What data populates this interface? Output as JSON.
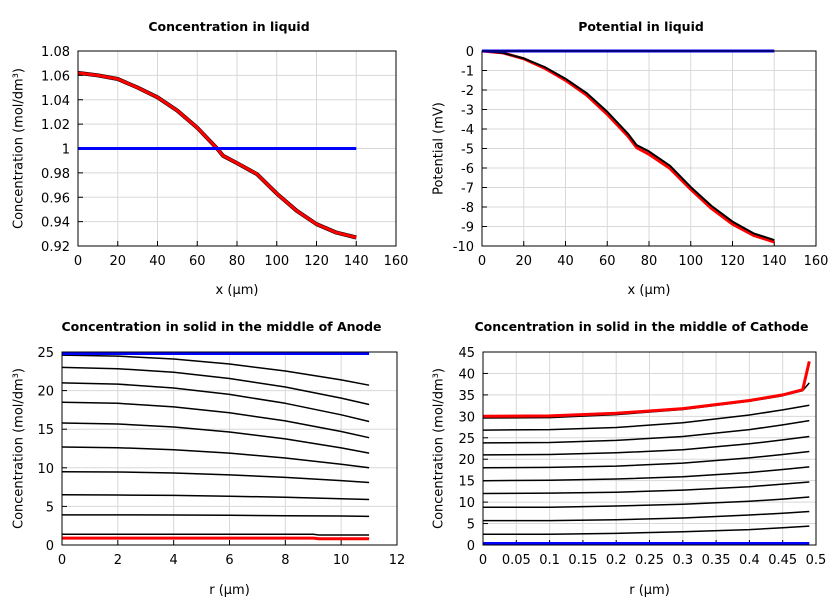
{
  "chart_data": [
    {
      "type": "line",
      "title": "Concentration in liquid",
      "xlabel": "x (µm)",
      "ylabel": "Concentration (mol/dm³)",
      "xlim": [
        0,
        160
      ],
      "ylim": [
        0.92,
        1.08
      ],
      "xticks": [
        0,
        20,
        40,
        60,
        80,
        100,
        120,
        140,
        160
      ],
      "xtick_labels": [
        "0",
        "20",
        "40",
        "60",
        "80",
        "100",
        "120",
        "140",
        "160"
      ],
      "yticks": [
        0.92,
        0.94,
        0.96,
        0.98,
        1,
        1.02,
        1.04,
        1.06,
        1.08
      ],
      "ytick_labels": [
        "0.92",
        "0.94",
        "0.96",
        "0.98",
        "1",
        "1.02",
        "1.04",
        "1.06",
        "1.08"
      ],
      "grid": true,
      "series": [
        {
          "color": "#000000",
          "width": 4,
          "x": [
            0,
            10,
            20,
            30,
            40,
            50,
            60,
            70,
            73,
            80,
            90,
            100,
            110,
            120,
            130,
            140
          ],
          "y": [
            1.062,
            1.06,
            1.057,
            1.05,
            1.042,
            1.031,
            1.017,
            1.0,
            0.994,
            0.988,
            0.979,
            0.963,
            0.949,
            0.938,
            0.931,
            0.927
          ]
        },
        {
          "color": "#ff0000",
          "width": 3,
          "x": [
            0,
            10,
            20,
            30,
            40,
            50,
            60,
            70,
            73,
            80,
            90,
            100,
            110,
            120,
            130,
            140
          ],
          "y": [
            1.062,
            1.06,
            1.057,
            1.05,
            1.042,
            1.031,
            1.017,
            1.0,
            0.994,
            0.988,
            0.979,
            0.963,
            0.949,
            0.938,
            0.931,
            0.927
          ]
        },
        {
          "color": "#0000ff",
          "width": 3,
          "x": [
            0,
            140
          ],
          "y": [
            1,
            1
          ]
        }
      ]
    },
    {
      "type": "line",
      "title": "Potential in liquid",
      "xlabel": "x (µm)",
      "ylabel": "Potential (mV)",
      "xlim": [
        0,
        160
      ],
      "ylim": [
        -10,
        0
      ],
      "xticks": [
        0,
        20,
        40,
        60,
        80,
        100,
        120,
        140,
        160
      ],
      "xtick_labels": [
        "0",
        "20",
        "40",
        "60",
        "80",
        "100",
        "120",
        "140",
        "160"
      ],
      "yticks": [
        -10,
        -9,
        -8,
        -7,
        -6,
        -5,
        -4,
        -3,
        -2,
        -1,
        0
      ],
      "ytick_labels": [
        "-10",
        "-9",
        "-8",
        "-7",
        "-6",
        "-5",
        "-4",
        "-3",
        "-2",
        "-1",
        "0"
      ],
      "grid": true,
      "series": [
        {
          "color": "#ff0000",
          "width": 3,
          "x": [
            0,
            10,
            20,
            30,
            40,
            50,
            60,
            70,
            74,
            80,
            90,
            100,
            110,
            120,
            130,
            140
          ],
          "y": [
            0,
            -0.1,
            -0.4,
            -0.88,
            -1.5,
            -2.25,
            -3.25,
            -4.38,
            -4.95,
            -5.3,
            -6.02,
            -7.1,
            -8.08,
            -8.88,
            -9.45,
            -9.8
          ]
        },
        {
          "color": "#000000",
          "width": 2,
          "x": [
            0,
            10,
            20,
            30,
            40,
            50,
            60,
            70,
            74,
            80,
            90,
            100,
            110,
            120,
            130,
            140
          ],
          "y": [
            0,
            -0.1,
            -0.38,
            -0.82,
            -1.42,
            -2.15,
            -3.12,
            -4.25,
            -4.82,
            -5.15,
            -5.88,
            -6.98,
            -7.95,
            -8.75,
            -9.35,
            -9.7
          ]
        },
        {
          "color": "#0000ff",
          "width": 3,
          "x": [
            0,
            140
          ],
          "y": [
            0,
            0
          ]
        }
      ]
    },
    {
      "type": "line",
      "title": "Concentration in solid in the middle of Anode",
      "xlabel": "r (µm)",
      "ylabel": "Concentration (mol/dm³)",
      "xlim": [
        0,
        12
      ],
      "ylim": [
        0,
        25
      ],
      "xticks": [
        0,
        2,
        4,
        6,
        8,
        10,
        12
      ],
      "xtick_labels": [
        "0",
        "2",
        "4",
        "6",
        "8",
        "10",
        "12"
      ],
      "yticks": [
        0,
        5,
        10,
        15,
        20,
        25
      ],
      "ytick_labels": [
        "0",
        "5",
        "10",
        "15",
        "20",
        "25"
      ],
      "grid": true,
      "series": [
        {
          "color": "#000000",
          "width": 1.5,
          "x": [
            0,
            2,
            4,
            6,
            8,
            10,
            11
          ],
          "y": [
            24.6,
            24.47,
            24.09,
            23.44,
            22.54,
            21.38,
            20.7
          ]
        },
        {
          "color": "#000000",
          "width": 1.5,
          "x": [
            0,
            2,
            4,
            6,
            8,
            10,
            11
          ],
          "y": [
            23,
            22.84,
            22.37,
            21.57,
            20.46,
            19.03,
            18.2
          ]
        },
        {
          "color": "#000000",
          "width": 1.5,
          "x": [
            0,
            2,
            4,
            6,
            8,
            10,
            11
          ],
          "y": [
            21,
            20.84,
            20.34,
            19.51,
            18.36,
            16.87,
            16
          ]
        },
        {
          "color": "#000000",
          "width": 1.5,
          "x": [
            0,
            2,
            4,
            6,
            8,
            10,
            11
          ],
          "y": [
            18.5,
            18.35,
            17.89,
            17.13,
            16.07,
            14.7,
            13.9
          ]
        },
        {
          "color": "#000000",
          "width": 1.5,
          "x": [
            0,
            2,
            4,
            6,
            8,
            10,
            11
          ],
          "y": [
            15.8,
            15.67,
            15.29,
            14.64,
            13.74,
            12.58,
            11.9
          ]
        },
        {
          "color": "#000000",
          "width": 1.5,
          "x": [
            0,
            2,
            4,
            6,
            8,
            10,
            11
          ],
          "y": [
            12.7,
            12.61,
            12.34,
            11.9,
            11.27,
            10.47,
            10
          ]
        },
        {
          "color": "#000000",
          "width": 1.5,
          "x": [
            0,
            2,
            4,
            6,
            8,
            10,
            11
          ],
          "y": [
            9.5,
            9.45,
            9.32,
            9.08,
            8.76,
            8.34,
            8.1
          ]
        },
        {
          "color": "#000000",
          "width": 1.5,
          "x": [
            0,
            2,
            4,
            6,
            8,
            10,
            11
          ],
          "y": [
            6.5,
            6.48,
            6.42,
            6.32,
            6.18,
            6.0,
            5.9
          ]
        },
        {
          "color": "#000000",
          "width": 1.5,
          "x": [
            0,
            2,
            4,
            6,
            8,
            10,
            11
          ],
          "y": [
            3.9,
            3.9,
            3.88,
            3.85,
            3.8,
            3.75,
            3.7
          ]
        },
        {
          "color": "#000000",
          "width": 1.5,
          "x": [
            0,
            2,
            4,
            6,
            8,
            9,
            9.2,
            11
          ],
          "y": [
            1.4,
            1.4,
            1.4,
            1.4,
            1.4,
            1.4,
            1.3,
            1.3
          ]
        },
        {
          "color": "#ff0000",
          "width": 3,
          "x": [
            0,
            2,
            4,
            6,
            8,
            9,
            9.2,
            11
          ],
          "y": [
            0.9,
            0.9,
            0.9,
            0.9,
            0.9,
            0.9,
            0.8,
            0.8
          ]
        },
        {
          "color": "#0000ff",
          "width": 3,
          "x": [
            0,
            11
          ],
          "y": [
            24.8,
            24.8
          ]
        }
      ]
    },
    {
      "type": "line",
      "title": "Concentration in solid in the middle of Cathode",
      "xlabel": "r (µm)",
      "ylabel": "Concentration (mol/dm³)",
      "xlim": [
        0,
        0.5
      ],
      "ylim": [
        0,
        45
      ],
      "xticks": [
        0,
        0.05,
        0.1,
        0.15,
        0.2,
        0.25,
        0.3,
        0.35,
        0.4,
        0.45,
        0.5
      ],
      "xtick_labels": [
        "0",
        "0.05",
        "0.1",
        "0.15",
        "0.2",
        "0.25",
        "0.3",
        "0.35",
        "0.4",
        "0.45",
        "0.5"
      ],
      "yticks": [
        0,
        5,
        10,
        15,
        20,
        25,
        30,
        35,
        40,
        45
      ],
      "ytick_labels": [
        "0",
        "5",
        "10",
        "15",
        "20",
        "25",
        "30",
        "35",
        "40",
        "45"
      ],
      "grid": true,
      "series": [
        {
          "color": "#000000",
          "width": 1.5,
          "x": [
            0,
            0.1,
            0.2,
            0.3,
            0.4,
            0.45,
            0.48,
            0.49
          ],
          "y": [
            29.6,
            29.7,
            30.4,
            31.6,
            33.5,
            34.8,
            36,
            37.8
          ]
        },
        {
          "color": "#000000",
          "width": 1.5,
          "x": [
            0,
            0.1,
            0.2,
            0.3,
            0.4,
            0.45,
            0.49
          ],
          "y": [
            26.8,
            26.9,
            27.4,
            28.5,
            30.3,
            31.5,
            32.6
          ]
        },
        {
          "color": "#000000",
          "width": 1.5,
          "x": [
            0,
            0.1,
            0.2,
            0.3,
            0.4,
            0.45,
            0.49
          ],
          "y": [
            23.8,
            23.9,
            24.4,
            25.3,
            26.9,
            28.0,
            29
          ]
        },
        {
          "color": "#000000",
          "width": 1.5,
          "x": [
            0,
            0.1,
            0.2,
            0.3,
            0.4,
            0.45,
            0.49
          ],
          "y": [
            21,
            21.1,
            21.5,
            22.2,
            23.6,
            24.5,
            25.3
          ]
        },
        {
          "color": "#000000",
          "width": 1.5,
          "x": [
            0,
            0.1,
            0.2,
            0.3,
            0.4,
            0.45,
            0.49
          ],
          "y": [
            18,
            18.1,
            18.4,
            19.1,
            20.3,
            21.1,
            21.8
          ]
        },
        {
          "color": "#000000",
          "width": 1.5,
          "x": [
            0,
            0.1,
            0.2,
            0.3,
            0.4,
            0.45,
            0.49
          ],
          "y": [
            15,
            15.1,
            15.4,
            15.9,
            16.9,
            17.6,
            18.2
          ]
        },
        {
          "color": "#000000",
          "width": 1.5,
          "x": [
            0,
            0.1,
            0.2,
            0.3,
            0.4,
            0.45,
            0.49
          ],
          "y": [
            12,
            12.1,
            12.3,
            12.8,
            13.6,
            14.2,
            14.7
          ]
        },
        {
          "color": "#000000",
          "width": 1.5,
          "x": [
            0,
            0.1,
            0.2,
            0.3,
            0.4,
            0.45,
            0.49
          ],
          "y": [
            8.8,
            8.8,
            9.1,
            9.5,
            10.2,
            10.7,
            11.2
          ]
        },
        {
          "color": "#000000",
          "width": 1.5,
          "x": [
            0,
            0.1,
            0.2,
            0.3,
            0.4,
            0.45,
            0.49
          ],
          "y": [
            5.7,
            5.7,
            5.9,
            6.3,
            7.0,
            7.4,
            7.8
          ]
        },
        {
          "color": "#000000",
          "width": 1.5,
          "x": [
            0,
            0.1,
            0.2,
            0.3,
            0.4,
            0.45,
            0.49
          ],
          "y": [
            2.5,
            2.5,
            2.7,
            3.1,
            3.6,
            4.0,
            4.4
          ]
        },
        {
          "color": "#ff0000",
          "width": 3,
          "x": [
            0,
            0.1,
            0.2,
            0.3,
            0.4,
            0.45,
            0.48,
            0.49
          ],
          "y": [
            30,
            30.1,
            30.7,
            31.8,
            33.7,
            35,
            36.2,
            42.8
          ]
        },
        {
          "color": "#0000ff",
          "width": 3.5,
          "x": [
            0,
            0.49
          ],
          "y": [
            0.3,
            0.3
          ]
        }
      ]
    }
  ]
}
